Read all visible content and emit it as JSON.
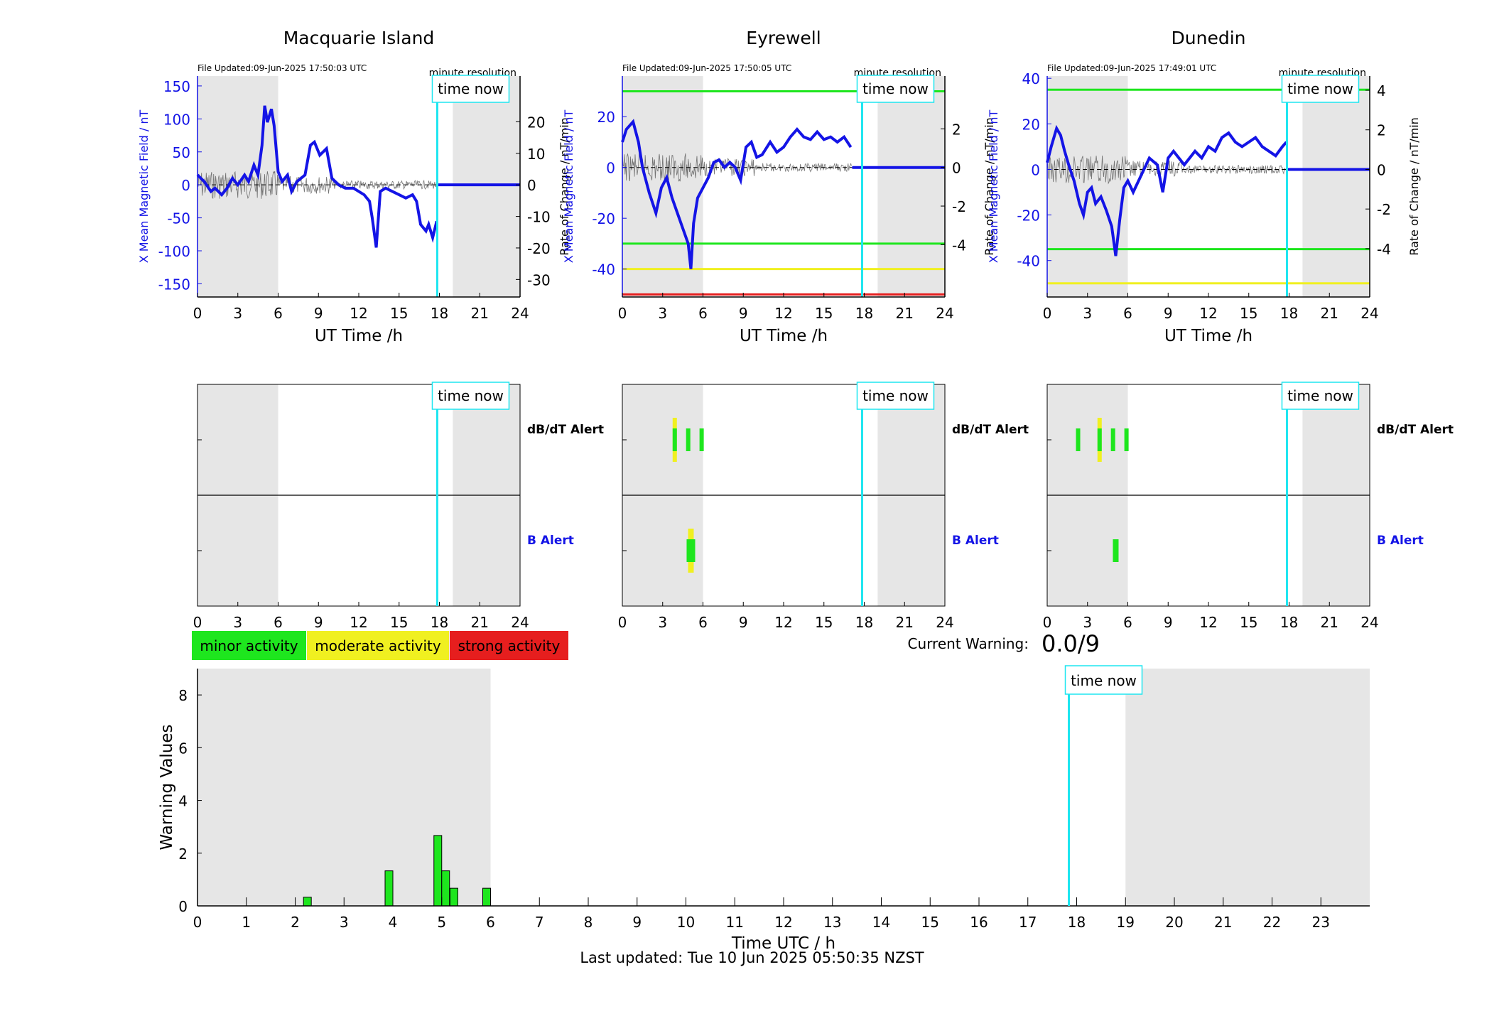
{
  "stations": [
    {
      "id": "macquarie",
      "title": "Macquarie Island",
      "file_updated": "File Updated:09-Jun-2025 17:50:03 UTC",
      "resolution": "minute resolution",
      "ylabel_left": "X Mean Magnetic Field / nT",
      "ylabel_right": "Rate of Change / nT/min",
      "xlabel": "UT Time /h",
      "ylim_left": [
        -170,
        165
      ],
      "yticks_left": [
        -150,
        -100,
        -50,
        0,
        50,
        100,
        150
      ],
      "yticks_right": [
        -30,
        -20,
        -10,
        0,
        10,
        20
      ],
      "thresholds": [],
      "field_trace": [
        [
          0,
          15
        ],
        [
          0.5,
          5
        ],
        [
          1,
          -10
        ],
        [
          1.3,
          -5
        ],
        [
          1.8,
          -15
        ],
        [
          2.2,
          -5
        ],
        [
          2.6,
          10
        ],
        [
          3,
          0
        ],
        [
          3.5,
          15
        ],
        [
          3.8,
          5
        ],
        [
          4.2,
          30
        ],
        [
          4.5,
          15
        ],
        [
          4.8,
          60
        ],
        [
          5,
          120
        ],
        [
          5.2,
          95
        ],
        [
          5.5,
          115
        ],
        [
          5.7,
          90
        ],
        [
          6,
          20
        ],
        [
          6.3,
          5
        ],
        [
          6.7,
          15
        ],
        [
          7,
          -10
        ],
        [
          7.4,
          5
        ],
        [
          8,
          15
        ],
        [
          8.4,
          60
        ],
        [
          8.7,
          65
        ],
        [
          9.1,
          45
        ],
        [
          9.6,
          55
        ],
        [
          10,
          10
        ],
        [
          10.5,
          0
        ],
        [
          11,
          -5
        ],
        [
          11.6,
          -5
        ],
        [
          12,
          -10
        ],
        [
          12.4,
          -15
        ],
        [
          12.8,
          -25
        ],
        [
          13,
          -50
        ],
        [
          13.3,
          -95
        ],
        [
          13.6,
          -10
        ],
        [
          14,
          -5
        ],
        [
          14.5,
          -10
        ],
        [
          15,
          -15
        ],
        [
          15.5,
          -20
        ],
        [
          16,
          -15
        ],
        [
          16.3,
          -25
        ],
        [
          16.6,
          -60
        ],
        [
          17,
          -70
        ],
        [
          17.2,
          -60
        ],
        [
          17.5,
          -80
        ],
        [
          17.8,
          -55
        ]
      ],
      "field_flat_from": 17.9,
      "time_now": 17.84,
      "shade": [
        [
          0,
          6
        ],
        [
          19,
          24
        ]
      ],
      "dbdt_alert_hours": [],
      "b_alert_hours": []
    },
    {
      "id": "eyrewell",
      "title": "Eyrewell",
      "file_updated": "File Updated:09-Jun-2025 17:50:05 UTC",
      "resolution": "minute resolution",
      "ylabel_left": "X Mean Magnetic Field / nT",
      "ylabel_right": "Rate of Change / nT/min",
      "xlabel": "UT Time /h",
      "ylim_left": [
        -51,
        36
      ],
      "yticks_left": [
        -40,
        -20,
        0,
        20
      ],
      "yticks_right": [
        -4,
        -2,
        0,
        2
      ],
      "thresholds": [
        {
          "value": 30,
          "color": "#1ee61e"
        },
        {
          "value": -30,
          "color": "#1ee61e"
        },
        {
          "value": -40,
          "color": "#f0f020"
        },
        {
          "value": -50,
          "color": "#e61e1e"
        }
      ],
      "field_trace": [
        [
          0,
          10
        ],
        [
          0.3,
          15
        ],
        [
          0.8,
          18
        ],
        [
          1.2,
          10
        ],
        [
          1.5,
          0
        ],
        [
          2,
          -10
        ],
        [
          2.5,
          -18
        ],
        [
          2.9,
          -8
        ],
        [
          3.3,
          -4
        ],
        [
          3.7,
          -12
        ],
        [
          4.1,
          -18
        ],
        [
          4.5,
          -24
        ],
        [
          4.9,
          -30
        ],
        [
          5.1,
          -40
        ],
        [
          5.3,
          -22
        ],
        [
          5.6,
          -12
        ],
        [
          6,
          -8
        ],
        [
          6.4,
          -4
        ],
        [
          6.8,
          2
        ],
        [
          7.2,
          3
        ],
        [
          7.6,
          0
        ],
        [
          8,
          2
        ],
        [
          8.4,
          0
        ],
        [
          8.8,
          -5
        ],
        [
          9.2,
          8
        ],
        [
          9.6,
          10
        ],
        [
          10,
          4
        ],
        [
          10.4,
          5
        ],
        [
          11,
          10
        ],
        [
          11.5,
          6
        ],
        [
          12,
          8
        ],
        [
          12.5,
          12
        ],
        [
          13,
          15
        ],
        [
          13.5,
          12
        ],
        [
          14,
          11
        ],
        [
          14.5,
          14
        ],
        [
          15,
          11
        ],
        [
          15.5,
          12
        ],
        [
          16,
          10
        ],
        [
          16.5,
          12
        ],
        [
          17,
          8
        ]
      ],
      "field_flat_from": 17.1,
      "time_now": 17.84,
      "shade": [
        [
          0,
          6
        ],
        [
          19,
          24
        ]
      ],
      "dbdt_alert_hours": [
        {
          "h": 3.9,
          "color": "#f0f020",
          "wide": true
        },
        {
          "h": 3.9,
          "color": "#1ee61e"
        },
        {
          "h": 4.9,
          "color": "#1ee61e"
        },
        {
          "h": 5.9,
          "color": "#1ee61e"
        }
      ],
      "b_alert_hours": [
        {
          "h": 5.1,
          "color": "#f0f020",
          "wide": true
        },
        {
          "h": 5.1,
          "color": "#1ee61e",
          "fat": true
        }
      ]
    },
    {
      "id": "dunedin",
      "title": "Dunedin",
      "file_updated": "File Updated:09-Jun-2025 17:49:01 UTC",
      "resolution": "minute resolution",
      "ylabel_left": "X Mean Magnetic Field / nT",
      "ylabel_right": "Rate of Change / nT/min",
      "xlabel": "UT Time /h",
      "ylim_left": [
        -56,
        41
      ],
      "yticks_left": [
        -40,
        -20,
        0,
        20,
        40
      ],
      "yticks_right": [
        -4,
        -2,
        0,
        2,
        4
      ],
      "thresholds": [
        {
          "value": 35,
          "color": "#1ee61e"
        },
        {
          "value": -35,
          "color": "#1ee61e"
        },
        {
          "value": -50,
          "color": "#f0f020"
        }
      ],
      "field_trace": [
        [
          0,
          3
        ],
        [
          0.3,
          10
        ],
        [
          0.7,
          18
        ],
        [
          1,
          15
        ],
        [
          1.3,
          8
        ],
        [
          1.6,
          2
        ],
        [
          2,
          -5
        ],
        [
          2.4,
          -15
        ],
        [
          2.7,
          -20
        ],
        [
          3,
          -10
        ],
        [
          3.3,
          -8
        ],
        [
          3.6,
          -15
        ],
        [
          4,
          -12
        ],
        [
          4.4,
          -18
        ],
        [
          4.8,
          -25
        ],
        [
          5.1,
          -38
        ],
        [
          5.4,
          -22
        ],
        [
          5.7,
          -8
        ],
        [
          6,
          -5
        ],
        [
          6.4,
          -10
        ],
        [
          6.8,
          -5
        ],
        [
          7.2,
          0
        ],
        [
          7.6,
          5
        ],
        [
          8.2,
          2
        ],
        [
          8.6,
          -10
        ],
        [
          9,
          5
        ],
        [
          9.4,
          8
        ],
        [
          9.8,
          5
        ],
        [
          10.2,
          2
        ],
        [
          10.6,
          5
        ],
        [
          11,
          8
        ],
        [
          11.5,
          5
        ],
        [
          12,
          10
        ],
        [
          12.5,
          8
        ],
        [
          13,
          14
        ],
        [
          13.5,
          16
        ],
        [
          14,
          12
        ],
        [
          14.5,
          10
        ],
        [
          15,
          12
        ],
        [
          15.5,
          14
        ],
        [
          16,
          10
        ],
        [
          16.5,
          8
        ],
        [
          17,
          6
        ],
        [
          17.5,
          10
        ],
        [
          17.8,
          12
        ]
      ],
      "field_flat_from": 17.9,
      "time_now": 17.84,
      "shade": [
        [
          0,
          6
        ],
        [
          19,
          24
        ]
      ],
      "dbdt_alert_hours": [
        {
          "h": 3.9,
          "color": "#f0f020",
          "wide": true
        },
        {
          "h": 2.3,
          "color": "#1ee61e"
        },
        {
          "h": 3.9,
          "color": "#1ee61e"
        },
        {
          "h": 4.9,
          "color": "#1ee61e"
        },
        {
          "h": 5.9,
          "color": "#1ee61e"
        }
      ],
      "b_alert_hours": [
        {
          "h": 5.1,
          "color": "#1ee61e"
        }
      ]
    }
  ],
  "alert_labels": {
    "dbdt": "dB/dT Alert",
    "b": "B Alert"
  },
  "time_now_label": "time now",
  "xticks_hours": [
    0,
    3,
    6,
    9,
    12,
    15,
    18,
    21,
    24
  ],
  "legend": [
    {
      "label": "minor activity",
      "color": "#1ee61e"
    },
    {
      "label": "moderate activity",
      "color": "#f0f020"
    },
    {
      "label": "strong activity",
      "color": "#e61e1e"
    }
  ],
  "current_warning": {
    "label": "Current Warning:",
    "value": "0.0/9"
  },
  "chart_data": {
    "type": "bar",
    "title": "",
    "xlabel": "Time UTC / h",
    "ylabel": "Warning Values",
    "xlim": [
      0,
      24
    ],
    "ylim": [
      0,
      9
    ],
    "yticks": [
      0,
      2,
      4,
      6,
      8
    ],
    "xticks": [
      0,
      1,
      2,
      3,
      4,
      5,
      6,
      7,
      8,
      9,
      10,
      11,
      12,
      13,
      14,
      15,
      16,
      17,
      18,
      19,
      20,
      21,
      22,
      23
    ],
    "bars": [
      {
        "x": 2.25,
        "value": 0.33
      },
      {
        "x": 3.92,
        "value": 1.33
      },
      {
        "x": 4.92,
        "value": 2.67
      },
      {
        "x": 5.08,
        "value": 1.33
      },
      {
        "x": 5.25,
        "value": 0.67
      },
      {
        "x": 5.92,
        "value": 0.67
      }
    ],
    "bar_color": "#1ee61e",
    "shade": [
      [
        0,
        6
      ],
      [
        19,
        24
      ]
    ],
    "time_now": 17.84
  },
  "footer": "Last updated: Tue 10 Jun 2025 05:50:35 NZST"
}
